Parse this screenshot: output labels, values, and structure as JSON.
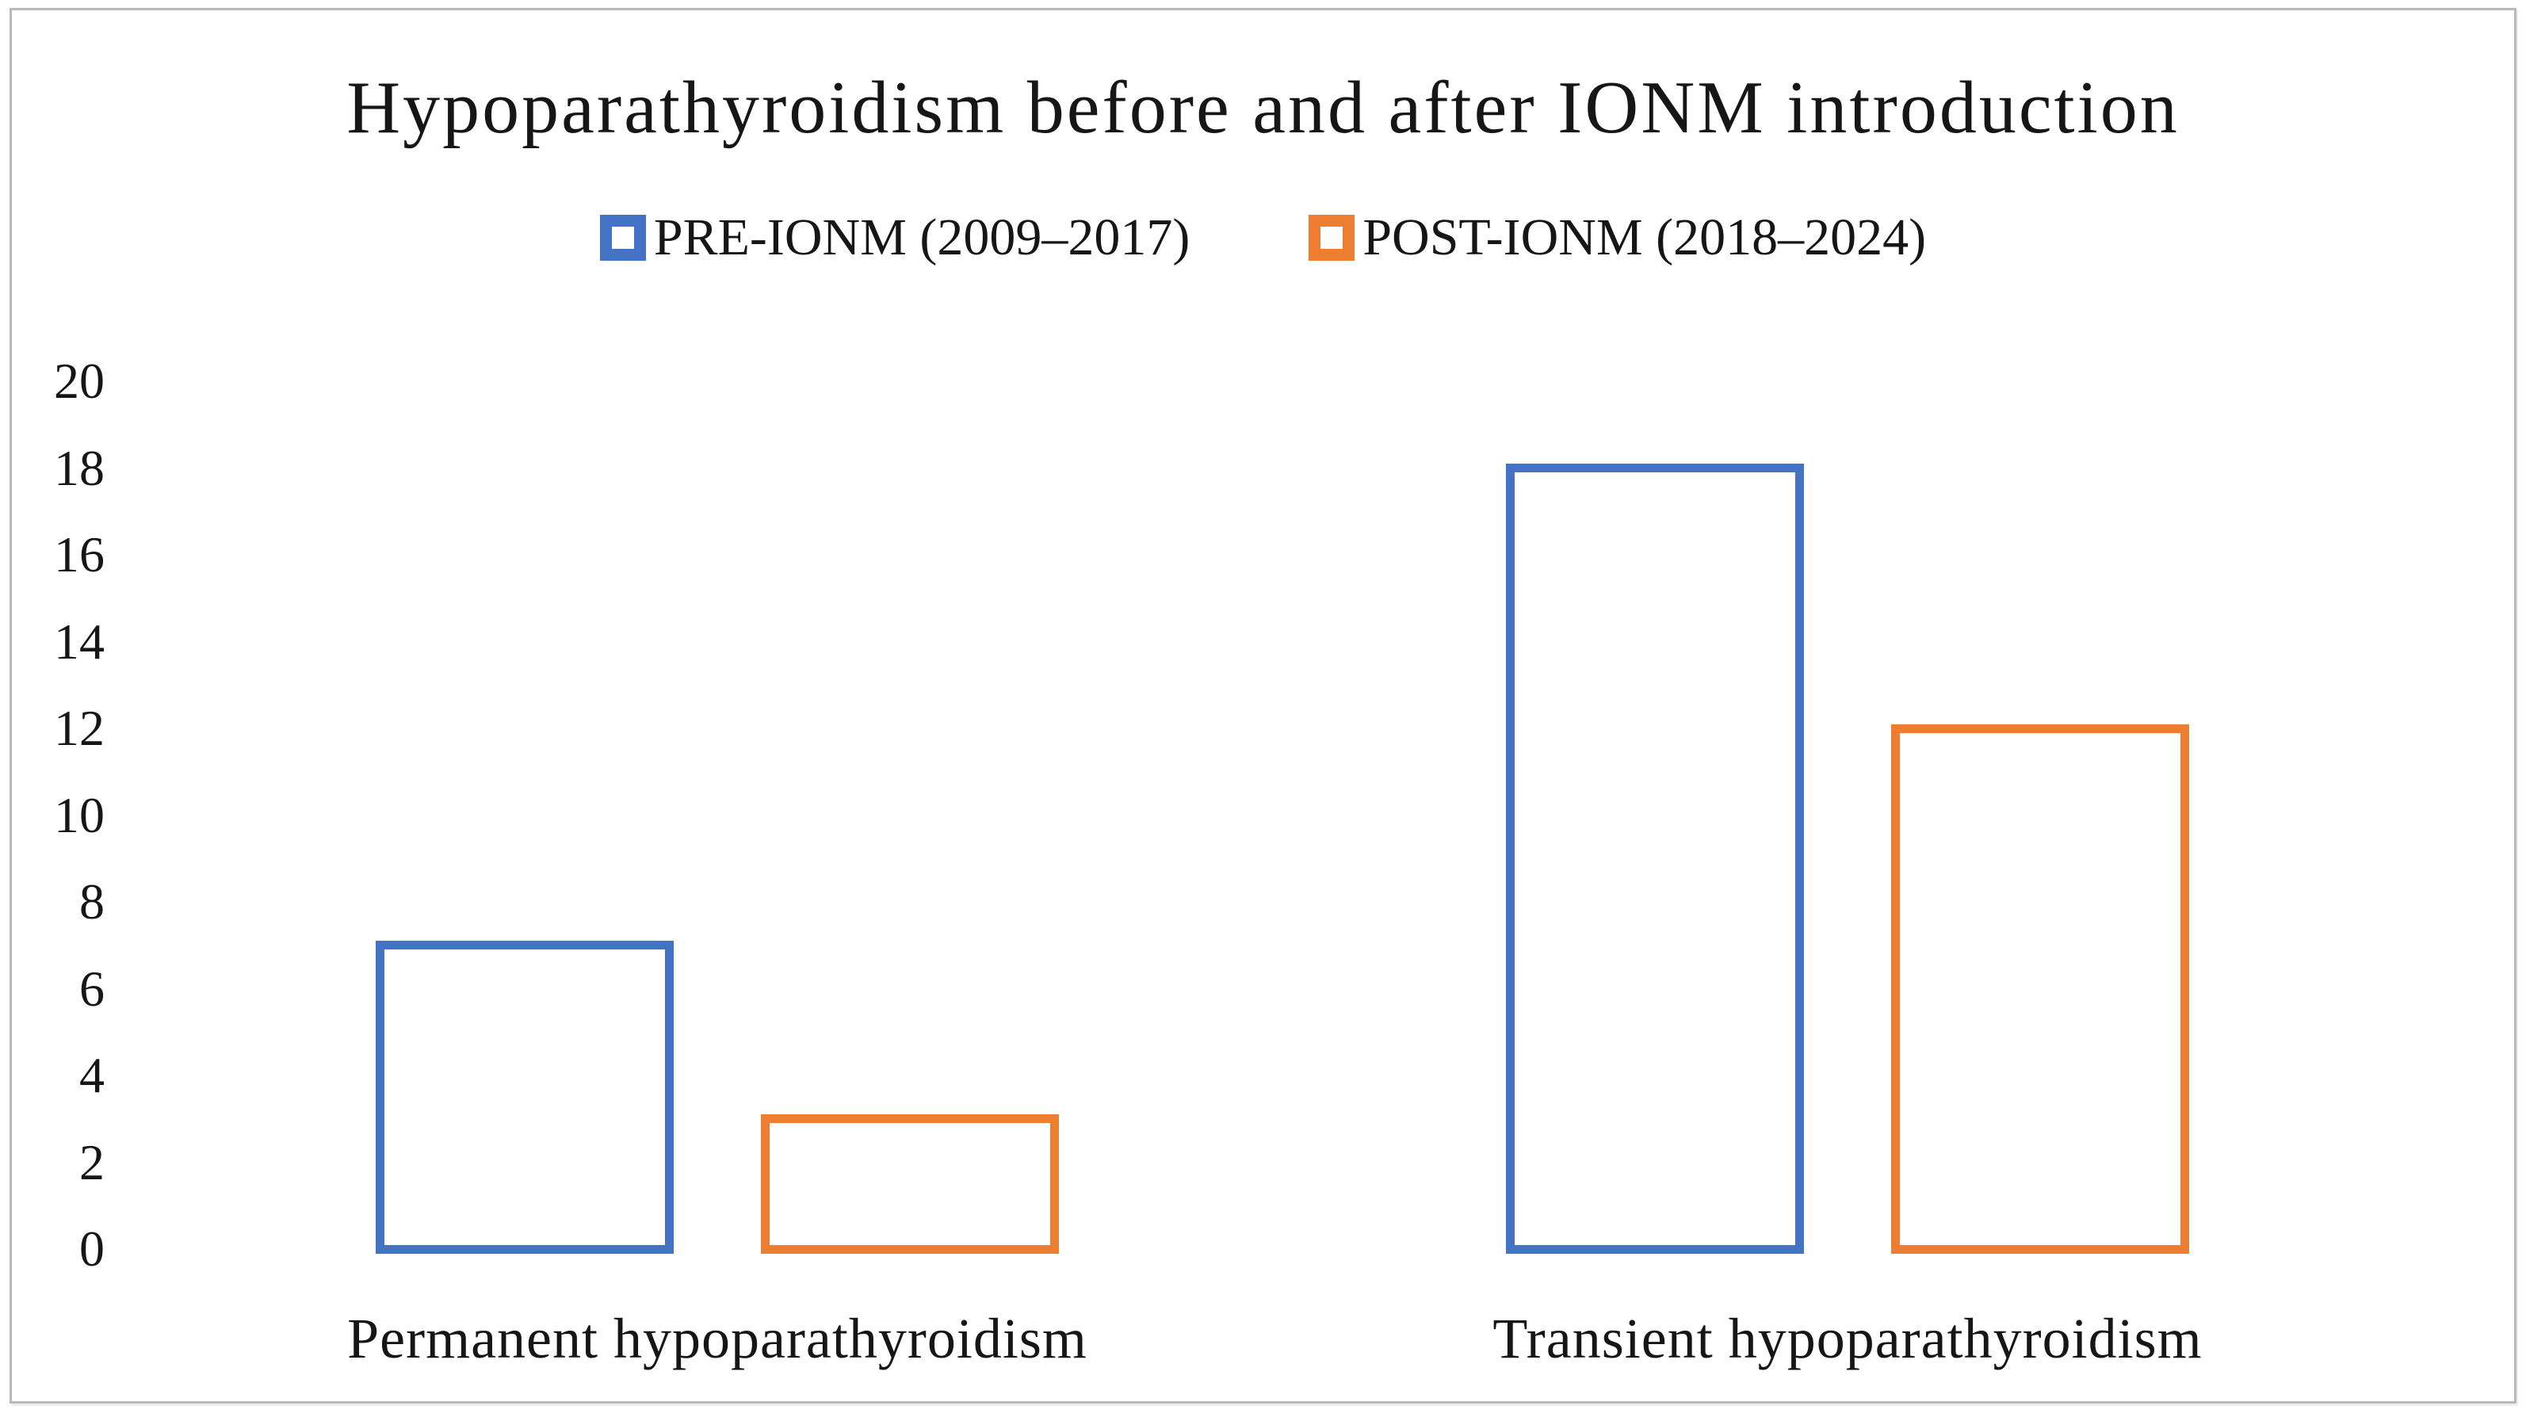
{
  "figure": {
    "background": "#ffffff",
    "frame_border_color": "#b9b9b9",
    "bar_fill": "#ffffff"
  },
  "chart_data": {
    "type": "bar",
    "title": "Hypoparathyroidism before and after IONM introduction",
    "categories": [
      "Permanent hypoparathyroidism",
      "Transient hypoparathyroidism"
    ],
    "series": [
      {
        "name": "PRE-IONM (2009–2017)",
        "color": "#4472C4",
        "values": [
          7,
          18
        ]
      },
      {
        "name": "POST-IONM (2018–2024)",
        "color": "#ED7D31",
        "values": [
          3,
          12
        ]
      }
    ],
    "bar_style": "outlined",
    "yticks": [
      0,
      2,
      4,
      6,
      8,
      10,
      12,
      14,
      16,
      18,
      20
    ],
    "ylim": [
      0,
      20
    ],
    "xlabel": "",
    "ylabel": "",
    "grid": false,
    "legend_position": "top-center"
  }
}
